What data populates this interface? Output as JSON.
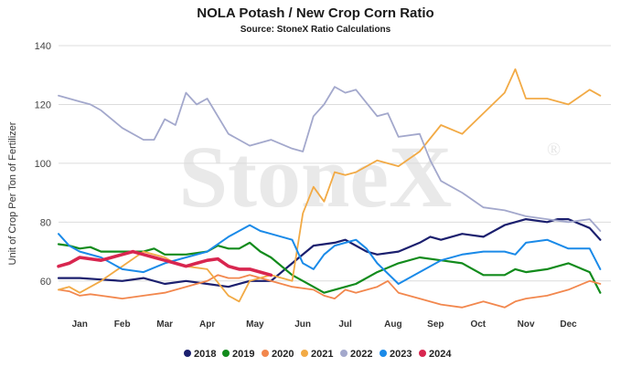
{
  "chart_data": {
    "type": "line",
    "title": "NOLA Potash / New Crop Corn Ratio",
    "subtitle": "Source: StoneX Ratio Calculations",
    "ylabel": "Unit of Crop Per Ton of Fertilizer",
    "xlabel": "",
    "ylim": [
      50,
      140
    ],
    "yticks": [
      60,
      80,
      100,
      120,
      140
    ],
    "xlim": [
      0,
      52
    ],
    "xtick_labels": [
      "Jan",
      "Feb",
      "Mar",
      "Apr",
      "May",
      "Jun",
      "Jul",
      "Aug",
      "Sep",
      "Oct",
      "Nov",
      "Dec"
    ],
    "xtick_weeks": [
      2,
      6,
      10,
      14,
      18.5,
      23,
      27,
      31.5,
      35.5,
      39.5,
      44,
      48
    ],
    "grid": "horizontal",
    "legend_position": "bottom",
    "watermark": "StoneX",
    "watermark_mark": "®",
    "series": [
      {
        "name": "2018",
        "color": "#1b1f6e",
        "width": 2.2,
        "x": [
          0,
          2,
          4,
          6,
          8,
          10,
          12,
          14,
          16,
          18,
          20,
          22,
          24,
          26,
          27,
          28,
          29,
          30,
          32,
          34,
          35,
          36,
          38,
          40,
          42,
          43,
          44,
          46,
          47,
          48,
          50,
          51
        ],
        "y": [
          61,
          61,
          60.5,
          60,
          61,
          59,
          60,
          59,
          58,
          60,
          60,
          66,
          72,
          73,
          74,
          72,
          70,
          69,
          70,
          73,
          75,
          74,
          76,
          75,
          79,
          80,
          81,
          80,
          81,
          81,
          78,
          74
        ]
      },
      {
        "name": "2019",
        "color": "#128b1c",
        "width": 2.2,
        "x": [
          0,
          1,
          2,
          3,
          4,
          6,
          8,
          9,
          10,
          12,
          14,
          15,
          16,
          17,
          18,
          19,
          20,
          22,
          24,
          25,
          26,
          28,
          30,
          32,
          34,
          36,
          38,
          40,
          42,
          43,
          44,
          46,
          48,
          50,
          51
        ],
        "y": [
          72.5,
          72,
          71,
          71.5,
          70,
          70,
          70,
          71,
          69,
          69,
          70,
          72,
          71,
          71,
          73,
          70,
          68,
          62,
          58,
          56,
          57,
          59,
          63,
          66,
          68,
          67,
          66,
          62,
          62,
          64,
          63,
          64,
          66,
          63,
          56
        ]
      },
      {
        "name": "2020",
        "color": "#f2874d",
        "width": 1.8,
        "x": [
          0,
          1,
          2,
          3,
          4,
          6,
          8,
          10,
          12,
          14,
          15,
          16,
          17,
          18,
          20,
          22,
          24,
          25,
          26,
          27,
          28,
          30,
          31,
          32,
          34,
          36,
          38,
          40,
          42,
          43,
          44,
          46,
          48,
          50,
          51
        ],
        "y": [
          57,
          56.5,
          55,
          55.5,
          55,
          54,
          55,
          56,
          58,
          60,
          62,
          61,
          61,
          62,
          60,
          58,
          57,
          55,
          54,
          57,
          56,
          58,
          60,
          56,
          54,
          52,
          51,
          53,
          51,
          53,
          54,
          55,
          57,
          60,
          59
        ]
      },
      {
        "name": "2021",
        "color": "#f2aa45",
        "width": 1.8,
        "x": [
          0,
          1,
          2,
          4,
          6,
          8,
          10,
          11,
          12,
          14,
          16,
          17,
          18,
          20,
          22,
          23,
          24,
          25,
          26,
          27,
          28,
          30,
          32,
          34,
          36,
          38,
          40,
          42,
          43,
          44,
          46,
          48,
          50,
          51
        ],
        "y": [
          57,
          58,
          56,
          60,
          65,
          70,
          68,
          66,
          65,
          64,
          55,
          53,
          60,
          62,
          60,
          83,
          92,
          87,
          97,
          96,
          97,
          101,
          99,
          104,
          113,
          110,
          117,
          124,
          132,
          122,
          122,
          120,
          125,
          123
        ]
      },
      {
        "name": "2022",
        "color": "#a3a8cc",
        "width": 1.8,
        "x": [
          0,
          1,
          2,
          3,
          4,
          6,
          8,
          9,
          10,
          11,
          12,
          13,
          14,
          16,
          18,
          20,
          22,
          23,
          24,
          25,
          26,
          27,
          28,
          30,
          31,
          32,
          34,
          35,
          36,
          38,
          40,
          42,
          44,
          46,
          48,
          50,
          51
        ],
        "y": [
          123,
          122,
          121,
          120,
          118,
          112,
          108,
          108,
          115,
          113,
          124,
          120,
          122,
          110,
          106,
          108,
          105,
          104,
          116,
          120,
          126,
          124,
          125,
          116,
          117,
          109,
          110,
          101,
          94,
          90,
          85,
          84,
          82,
          81,
          80,
          81,
          77
        ]
      },
      {
        "name": "2023",
        "color": "#1a8ae8",
        "width": 2.0,
        "x": [
          0,
          1,
          2,
          4,
          6,
          8,
          10,
          12,
          14,
          16,
          17,
          18,
          19,
          20,
          22,
          23,
          24,
          25,
          26,
          28,
          29,
          30,
          32,
          34,
          36,
          38,
          40,
          42,
          43,
          44,
          46,
          48,
          50,
          51
        ],
        "y": [
          76,
          72,
          70,
          68,
          64,
          63,
          66,
          68,
          70,
          75,
          77,
          79,
          77,
          76,
          74,
          66,
          64,
          69,
          72,
          74,
          71,
          66,
          59,
          63,
          67,
          69,
          70,
          70,
          69,
          73,
          74,
          71,
          71,
          64
        ]
      },
      {
        "name": "2024",
        "color": "#d8264f",
        "width": 3.6,
        "x": [
          0,
          1,
          2,
          3,
          4,
          5,
          6,
          7,
          8,
          9,
          10,
          11,
          12,
          13,
          14,
          15,
          16,
          17,
          18,
          19,
          20
        ],
        "y": [
          65,
          66,
          68,
          67.5,
          67,
          68,
          69,
          70,
          69,
          68,
          67,
          66,
          65,
          66,
          67,
          67.5,
          65,
          64,
          64,
          63,
          62
        ]
      }
    ]
  }
}
